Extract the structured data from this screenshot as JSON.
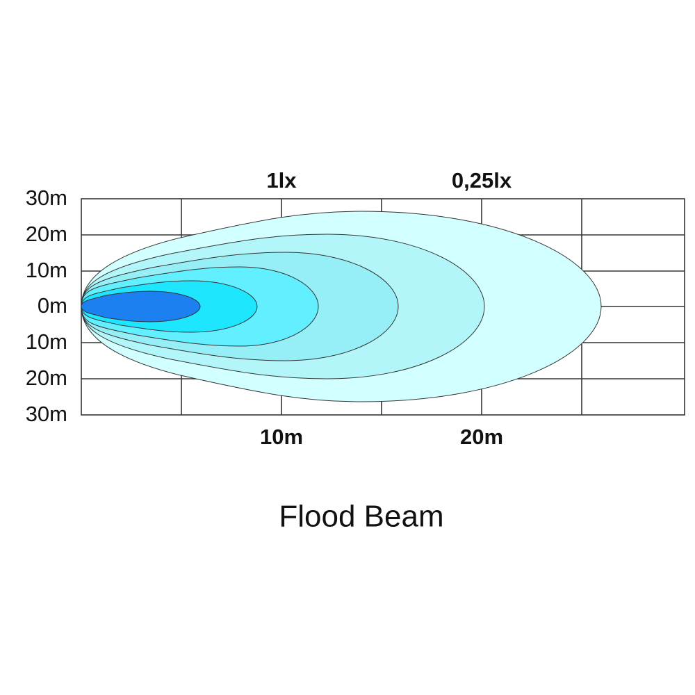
{
  "diagram": {
    "title": "Flood Beam",
    "lux_labels": [
      "1lx",
      "0,25lx"
    ],
    "y_labels": [
      "30m",
      "20m",
      "10m",
      "0m",
      "10m",
      "20m",
      "30m"
    ],
    "x_labels": [
      "10m",
      "20m"
    ]
  }
}
